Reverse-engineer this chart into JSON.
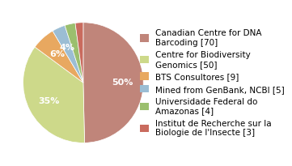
{
  "labels": [
    "Canadian Centre for DNA\nBarcoding [70]",
    "Centre for Biodiversity\nGenomics [50]",
    "BTS Consultores [9]",
    "Mined from GenBank, NCBI [5]",
    "Universidade Federal do\nAmazonas [4]",
    "Institut de Recherche sur la\nBiologie de l'Insecte [3]"
  ],
  "values": [
    70,
    50,
    9,
    5,
    4,
    3
  ],
  "colors": [
    "#c0857a",
    "#cdd98a",
    "#e8a860",
    "#9bbdd4",
    "#9bbf6e",
    "#c96b5e"
  ],
  "autopct_threshold": 3,
  "background_color": "#ffffff",
  "text_color": "#ffffff",
  "startangle": 90,
  "legend_fontsize": 7.5
}
